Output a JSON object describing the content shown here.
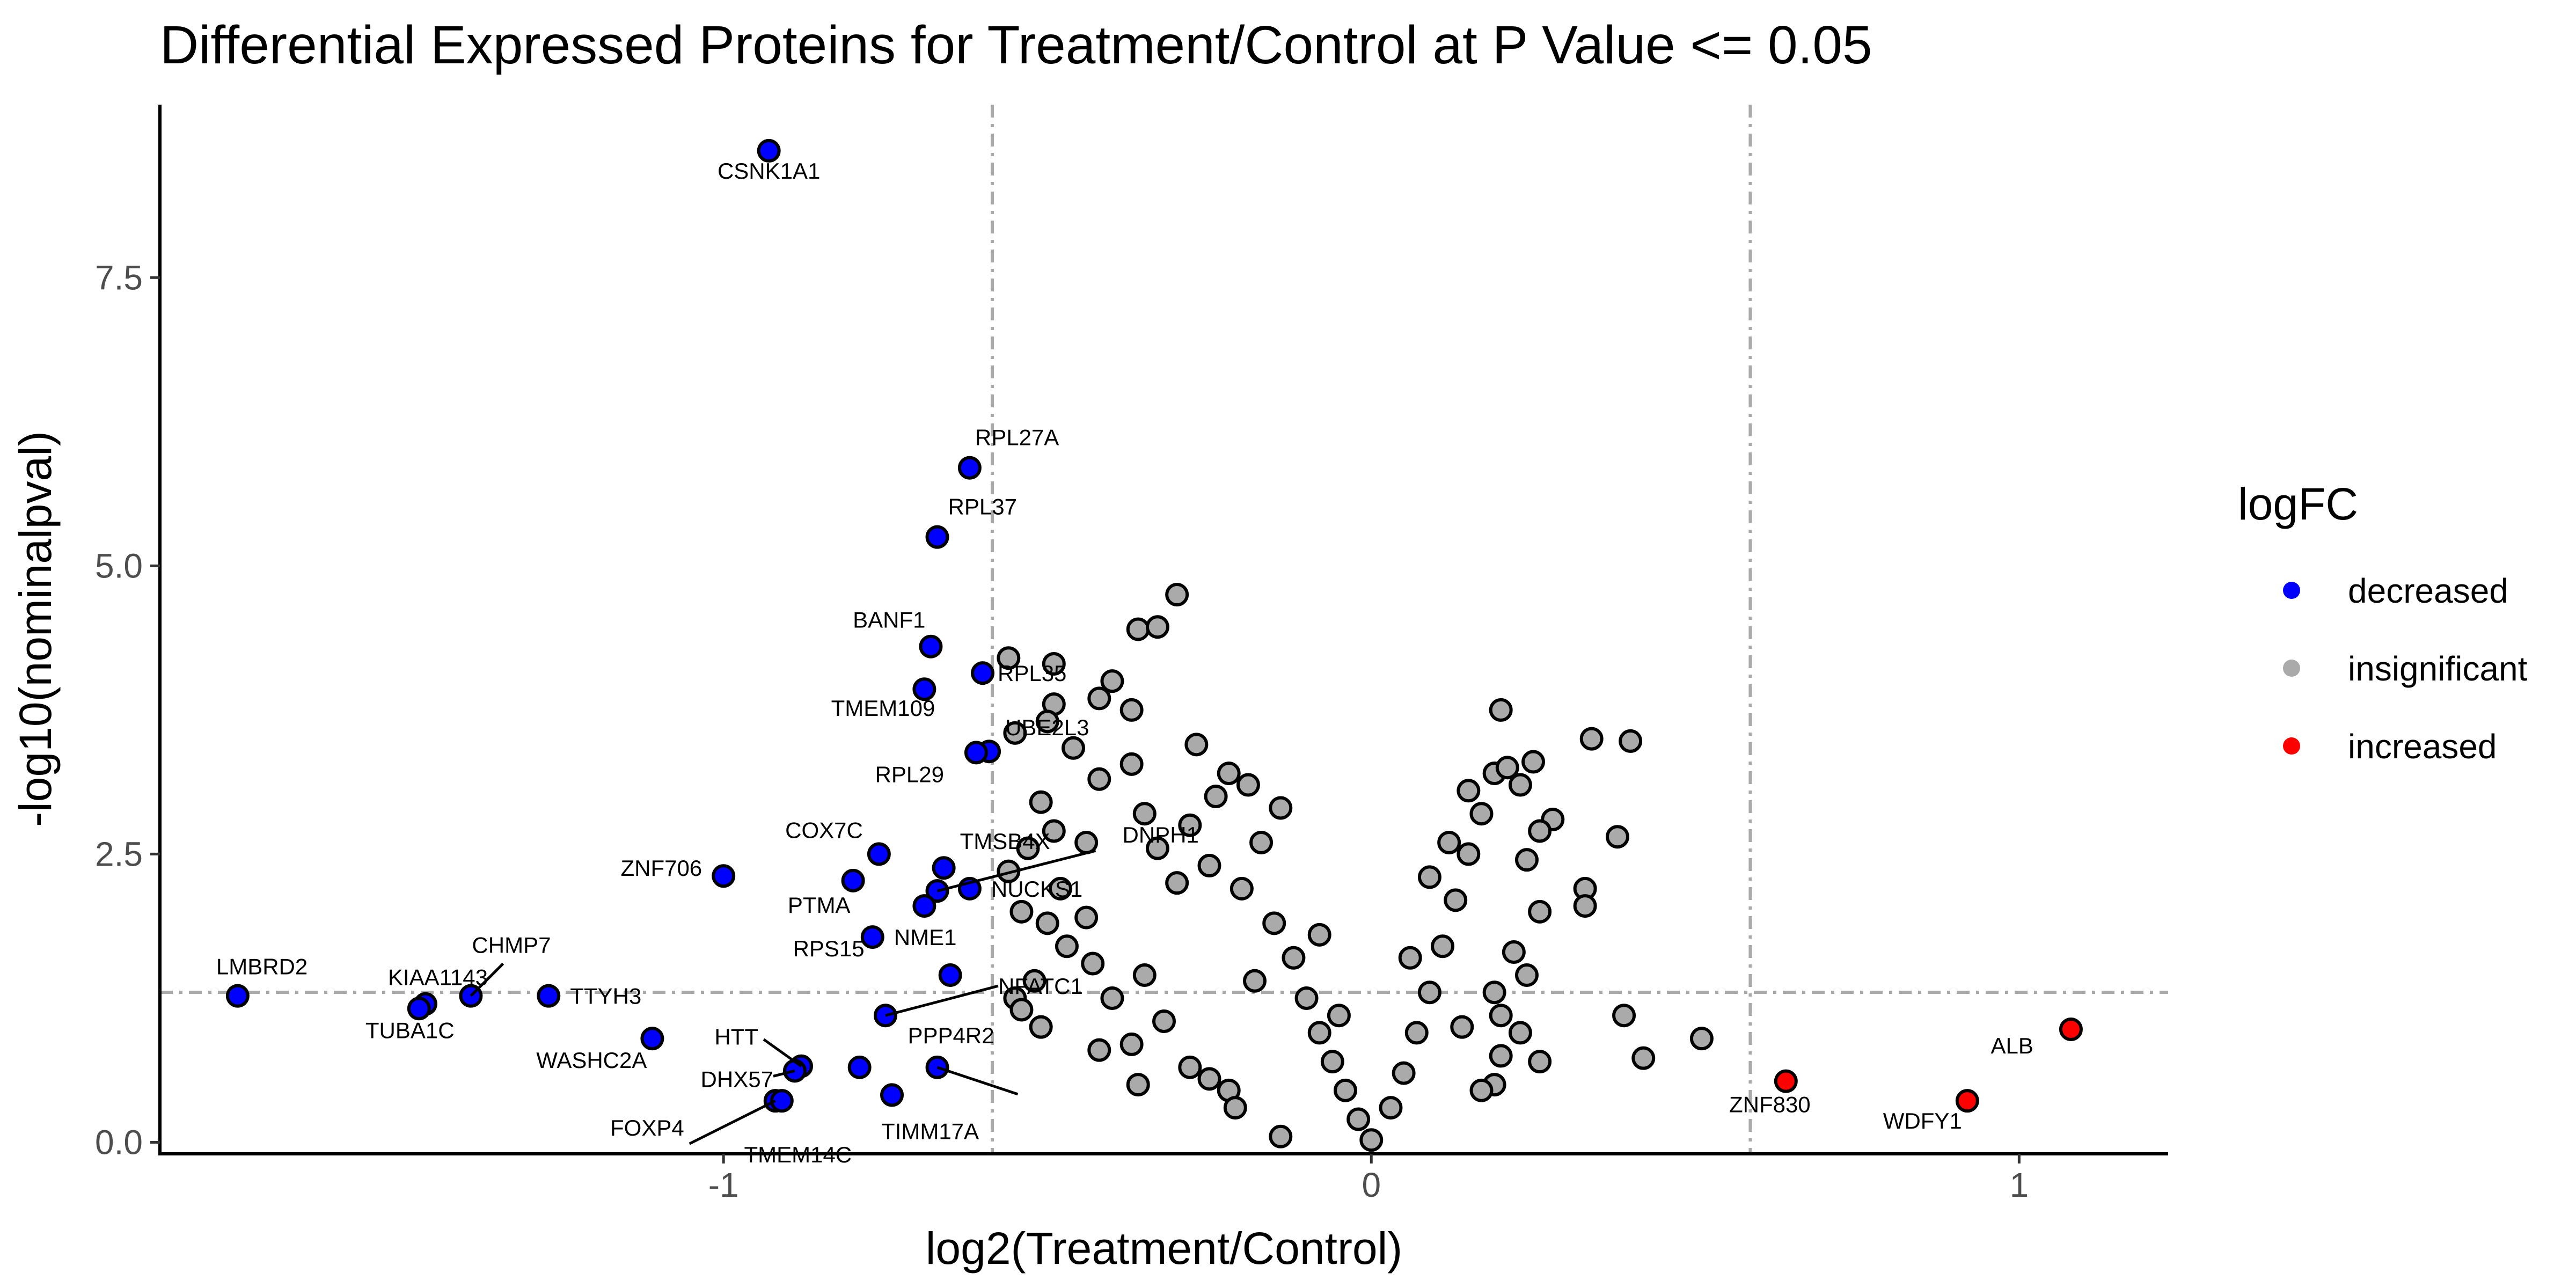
{
  "chart_data": {
    "type": "scatter",
    "title": "Differential Expressed Proteins for Treatment/Control at P Value <= 0.05",
    "xlabel": "log2(Treatment/Control)",
    "ylabel": "-log10(nominalpval)",
    "xlim": [
      -1.87,
      1.23
    ],
    "ylim": [
      -0.1,
      9.0
    ],
    "x_ticks": [
      -1,
      0,
      1
    ],
    "x_tick_labels": [
      "-1",
      "0",
      "1"
    ],
    "y_ticks": [
      0,
      2.5,
      5,
      7.5
    ],
    "y_tick_labels": [
      "0.0",
      "2.5",
      "5.0",
      "7.5"
    ],
    "thresholds": {
      "x": [
        -0.585,
        0.585
      ],
      "y": 1.301
    },
    "grid": false,
    "legend": {
      "title": "logFC",
      "position": "right",
      "entries": [
        {
          "label": "decreased",
          "color": "#0000ff"
        },
        {
          "label": "insignificant",
          "color": "#aaaaaa"
        },
        {
          "label": "increased",
          "color": "#ff0000"
        }
      ]
    },
    "series": [
      {
        "name": "decreased",
        "color": "#0000ff",
        "points": [
          {
            "x": -0.93,
            "y": 8.6,
            "label": "CSNK1A1"
          },
          {
            "x": -0.62,
            "y": 5.85,
            "label": "RPL27A"
          },
          {
            "x": -0.67,
            "y": 5.25,
            "label": "RPL37"
          },
          {
            "x": -0.68,
            "y": 4.3,
            "label": "BANF1"
          },
          {
            "x": -0.6,
            "y": 4.07,
            "label": "RPL35"
          },
          {
            "x": -0.69,
            "y": 3.93,
            "label": "TMEM109"
          },
          {
            "x": -0.59,
            "y": 3.39,
            "label": "UBE2L3"
          },
          {
            "x": -0.61,
            "y": 3.38,
            "label": "RPL29"
          },
          {
            "x": -0.76,
            "y": 2.5,
            "label": "COX7C"
          },
          {
            "x": -0.66,
            "y": 2.38,
            "label": "TMSB4X"
          },
          {
            "x": -0.62,
            "y": 2.2,
            "label": "NUCKS1"
          },
          {
            "x": -0.67,
            "y": 2.18,
            "label": "DNPH1"
          },
          {
            "x": -1.0,
            "y": 2.31,
            "label": "ZNF706"
          },
          {
            "x": -0.8,
            "y": 2.27,
            "label": "PTMA"
          },
          {
            "x": -0.69,
            "y": 2.05,
            "label": ""
          },
          {
            "x": -0.77,
            "y": 1.78,
            "label": "NME1"
          },
          {
            "x": -0.65,
            "y": 1.45,
            "label": "RPS15"
          },
          {
            "x": -0.75,
            "y": 1.1,
            "label": "NFATC1"
          },
          {
            "x": -1.75,
            "y": 1.27,
            "label": "LMBRD2"
          },
          {
            "x": -1.39,
            "y": 1.27,
            "label": "CHMP7"
          },
          {
            "x": -1.27,
            "y": 1.27,
            "label": "TTYH3"
          },
          {
            "x": -1.46,
            "y": 1.2,
            "label": "KIAA1143"
          },
          {
            "x": -1.47,
            "y": 1.16,
            "label": "TUBA1C"
          },
          {
            "x": -1.11,
            "y": 0.9,
            "label": "WASHC2A"
          },
          {
            "x": -0.88,
            "y": 0.66,
            "label": "HTT"
          },
          {
            "x": -0.89,
            "y": 0.62,
            "label": "DHX57"
          },
          {
            "x": -0.79,
            "y": 0.65,
            "label": ""
          },
          {
            "x": -0.67,
            "y": 0.65,
            "label": "PPP4R2"
          },
          {
            "x": -0.74,
            "y": 0.41,
            "label": "TIMM17A"
          },
          {
            "x": -0.92,
            "y": 0.36,
            "label": "FOXP4"
          },
          {
            "x": -0.91,
            "y": 0.36,
            "label": "TMEM14C"
          }
        ]
      },
      {
        "name": "insignificant",
        "color": "#aaaaaa",
        "points": [
          {
            "x": -0.3,
            "y": 4.75
          },
          {
            "x": -0.36,
            "y": 4.45
          },
          {
            "x": -0.33,
            "y": 4.47
          },
          {
            "x": -0.56,
            "y": 4.2
          },
          {
            "x": -0.49,
            "y": 4.15
          },
          {
            "x": -0.4,
            "y": 4.0
          },
          {
            "x": -0.42,
            "y": 3.85
          },
          {
            "x": -0.49,
            "y": 3.8
          },
          {
            "x": -0.37,
            "y": 3.75
          },
          {
            "x": -0.5,
            "y": 3.65
          },
          {
            "x": -0.55,
            "y": 3.55
          },
          {
            "x": -0.46,
            "y": 3.42
          },
          {
            "x": -0.37,
            "y": 3.28
          },
          {
            "x": -0.42,
            "y": 3.15
          },
          {
            "x": -0.51,
            "y": 2.95
          },
          {
            "x": -0.49,
            "y": 2.7
          },
          {
            "x": -0.44,
            "y": 2.6
          },
          {
            "x": -0.53,
            "y": 2.55
          },
          {
            "x": -0.56,
            "y": 2.35
          },
          {
            "x": -0.48,
            "y": 2.2
          },
          {
            "x": -0.54,
            "y": 2.0
          },
          {
            "x": -0.44,
            "y": 1.95
          },
          {
            "x": -0.5,
            "y": 1.9
          },
          {
            "x": -0.47,
            "y": 1.7
          },
          {
            "x": -0.43,
            "y": 1.55
          },
          {
            "x": -0.52,
            "y": 1.4
          },
          {
            "x": -0.55,
            "y": 1.25
          },
          {
            "x": -0.54,
            "y": 1.15
          },
          {
            "x": -0.51,
            "y": 1.0
          },
          {
            "x": -0.35,
            "y": 1.45
          },
          {
            "x": -0.4,
            "y": 1.25
          },
          {
            "x": -0.32,
            "y": 1.05
          },
          {
            "x": -0.37,
            "y": 0.85
          },
          {
            "x": -0.42,
            "y": 0.8
          },
          {
            "x": -0.36,
            "y": 0.5
          },
          {
            "x": -0.28,
            "y": 0.65
          },
          {
            "x": -0.25,
            "y": 0.55
          },
          {
            "x": -0.22,
            "y": 0.45
          },
          {
            "x": -0.21,
            "y": 0.3
          },
          {
            "x": -0.14,
            "y": 0.05
          },
          {
            "x": -0.3,
            "y": 2.25
          },
          {
            "x": -0.33,
            "y": 2.55
          },
          {
            "x": -0.35,
            "y": 2.85
          },
          {
            "x": -0.28,
            "y": 2.75
          },
          {
            "x": -0.24,
            "y": 3.0
          },
          {
            "x": -0.22,
            "y": 3.2
          },
          {
            "x": -0.19,
            "y": 3.1
          },
          {
            "x": -0.27,
            "y": 3.45
          },
          {
            "x": -0.25,
            "y": 2.4
          },
          {
            "x": -0.2,
            "y": 2.2
          },
          {
            "x": -0.17,
            "y": 2.6
          },
          {
            "x": -0.15,
            "y": 1.9
          },
          {
            "x": -0.12,
            "y": 1.6
          },
          {
            "x": -0.1,
            "y": 1.25
          },
          {
            "x": -0.08,
            "y": 0.95
          },
          {
            "x": -0.06,
            "y": 0.7
          },
          {
            "x": -0.04,
            "y": 0.45
          },
          {
            "x": -0.02,
            "y": 0.2
          },
          {
            "x": 0.0,
            "y": 0.02
          },
          {
            "x": 0.03,
            "y": 0.3
          },
          {
            "x": 0.05,
            "y": 0.6
          },
          {
            "x": 0.07,
            "y": 0.95
          },
          {
            "x": 0.09,
            "y": 1.3
          },
          {
            "x": 0.11,
            "y": 1.7
          },
          {
            "x": 0.13,
            "y": 2.1
          },
          {
            "x": 0.15,
            "y": 2.5
          },
          {
            "x": 0.17,
            "y": 2.85
          },
          {
            "x": 0.19,
            "y": 3.2
          },
          {
            "x": 0.15,
            "y": 3.05
          },
          {
            "x": 0.2,
            "y": 3.75
          },
          {
            "x": 0.34,
            "y": 3.5
          },
          {
            "x": 0.4,
            "y": 3.48
          },
          {
            "x": 0.25,
            "y": 3.3
          },
          {
            "x": 0.21,
            "y": 3.25
          },
          {
            "x": 0.23,
            "y": 3.1
          },
          {
            "x": 0.28,
            "y": 2.8
          },
          {
            "x": 0.26,
            "y": 2.7
          },
          {
            "x": 0.38,
            "y": 2.65
          },
          {
            "x": 0.33,
            "y": 2.2
          },
          {
            "x": 0.33,
            "y": 2.05
          },
          {
            "x": 0.24,
            "y": 2.45
          },
          {
            "x": 0.26,
            "y": 2.0
          },
          {
            "x": 0.22,
            "y": 1.65
          },
          {
            "x": 0.24,
            "y": 1.45
          },
          {
            "x": 0.19,
            "y": 1.3
          },
          {
            "x": 0.2,
            "y": 1.1
          },
          {
            "x": 0.23,
            "y": 0.95
          },
          {
            "x": 0.2,
            "y": 0.75
          },
          {
            "x": 0.26,
            "y": 0.7
          },
          {
            "x": 0.19,
            "y": 0.5
          },
          {
            "x": 0.17,
            "y": 0.45
          },
          {
            "x": 0.39,
            "y": 1.1
          },
          {
            "x": 0.42,
            "y": 0.73
          },
          {
            "x": 0.51,
            "y": 0.9
          },
          {
            "x": -0.08,
            "y": 1.8
          },
          {
            "x": 0.09,
            "y": 2.3
          },
          {
            "x": -0.14,
            "y": 2.9
          },
          {
            "x": 0.12,
            "y": 2.6
          },
          {
            "x": -0.18,
            "y": 1.4
          },
          {
            "x": 0.14,
            "y": 1.0
          },
          {
            "x": -0.05,
            "y": 1.1
          },
          {
            "x": 0.06,
            "y": 1.6
          }
        ]
      },
      {
        "name": "increased",
        "color": "#ff0000",
        "points": [
          {
            "x": 1.08,
            "y": 0.98,
            "label": "ALB"
          },
          {
            "x": 0.64,
            "y": 0.53,
            "label": "ZNF830"
          },
          {
            "x": 0.92,
            "y": 0.36,
            "label": "WDFY1"
          }
        ]
      }
    ]
  }
}
